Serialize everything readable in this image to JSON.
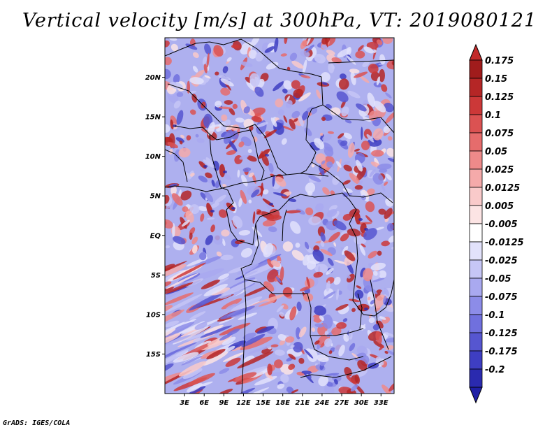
{
  "title": "Vertical velocity [m/s] at 300hPa, VT: 2019080121",
  "credit": "GrADS: IGES/COLA",
  "map": {
    "lon_range": [
      0,
      35
    ],
    "lat_range": [
      -20,
      25
    ],
    "lat_ticks": [
      {
        "value": 20,
        "label": "20N"
      },
      {
        "value": 15,
        "label": "15N"
      },
      {
        "value": 10,
        "label": "10N"
      },
      {
        "value": 5,
        "label": "5N"
      },
      {
        "value": 0,
        "label": "EQ"
      },
      {
        "value": -5,
        "label": "5S"
      },
      {
        "value": -10,
        "label": "10S"
      },
      {
        "value": -15,
        "label": "15S"
      }
    ],
    "lon_ticks": [
      {
        "value": 3,
        "label": "3E"
      },
      {
        "value": 6,
        "label": "6E"
      },
      {
        "value": 9,
        "label": "9E"
      },
      {
        "value": 12,
        "label": "12E"
      },
      {
        "value": 15,
        "label": "15E"
      },
      {
        "value": 18,
        "label": "18E"
      },
      {
        "value": 21,
        "label": "21E"
      },
      {
        "value": 24,
        "label": "24E"
      },
      {
        "value": 27,
        "label": "27E"
      },
      {
        "value": 30,
        "label": "30E"
      },
      {
        "value": 33,
        "label": "33E"
      }
    ]
  },
  "colorbar": {
    "levels": [
      {
        "label": "0.175",
        "color": "#a01c1c"
      },
      {
        "label": "0.15",
        "color": "#b52626"
      },
      {
        "label": "0.125",
        "color": "#cc3838"
      },
      {
        "label": "0.1",
        "color": "#db5252"
      },
      {
        "label": "0.075",
        "color": "#e66c6c"
      },
      {
        "label": "0.05",
        "color": "#ee8a8a"
      },
      {
        "label": "0.025",
        "color": "#f5aaaa"
      },
      {
        "label": "0.0125",
        "color": "#f9caca"
      },
      {
        "label": "0.005",
        "color": "#fce4e4"
      },
      {
        "label": "-0.005",
        "color": "#ffffff"
      },
      {
        "label": "-0.0125",
        "color": "#e2e2fb"
      },
      {
        "label": "-0.025",
        "color": "#c6c6f6"
      },
      {
        "label": "-0.05",
        "color": "#a9a9f0"
      },
      {
        "label": "-0.075",
        "color": "#8c8ce8"
      },
      {
        "label": "-0.1",
        "color": "#7070de"
      },
      {
        "label": "-0.125",
        "color": "#5656d0"
      },
      {
        "label": "-0.175",
        "color": "#3e3ec2"
      },
      {
        "label": "-0.2",
        "color": "#2a2aaf"
      }
    ],
    "top_color": "#c22a2a",
    "bottom_color": "#1f1fa6"
  }
}
